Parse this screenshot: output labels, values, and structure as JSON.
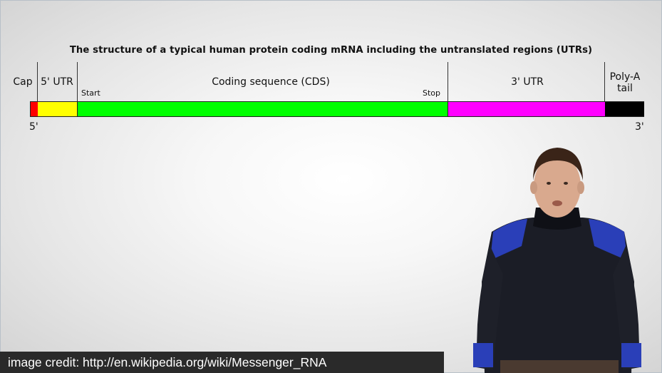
{
  "diagram": {
    "title": "The structure of a typical human protein coding mRNA including the untranslated regions (UTRs)",
    "regions": {
      "cap": {
        "label": "Cap",
        "color": "#ff0000"
      },
      "utr5": {
        "label": "5' UTR",
        "color": "#ffff00"
      },
      "cds": {
        "label": "Coding sequence (CDS)",
        "color": "#00ff00"
      },
      "utr3": {
        "label": "3' UTR",
        "color": "#ff00ff"
      },
      "polya": {
        "label_line1": "Poly-A",
        "label_line2": "tail",
        "color": "#000000"
      }
    },
    "start_label": "Start",
    "stop_label": "Stop",
    "end5_label": "5'",
    "end3_label": "3'"
  },
  "caption": {
    "text": "image credit: http://en.wikipedia.org/wiki/Messenger_RNA"
  }
}
